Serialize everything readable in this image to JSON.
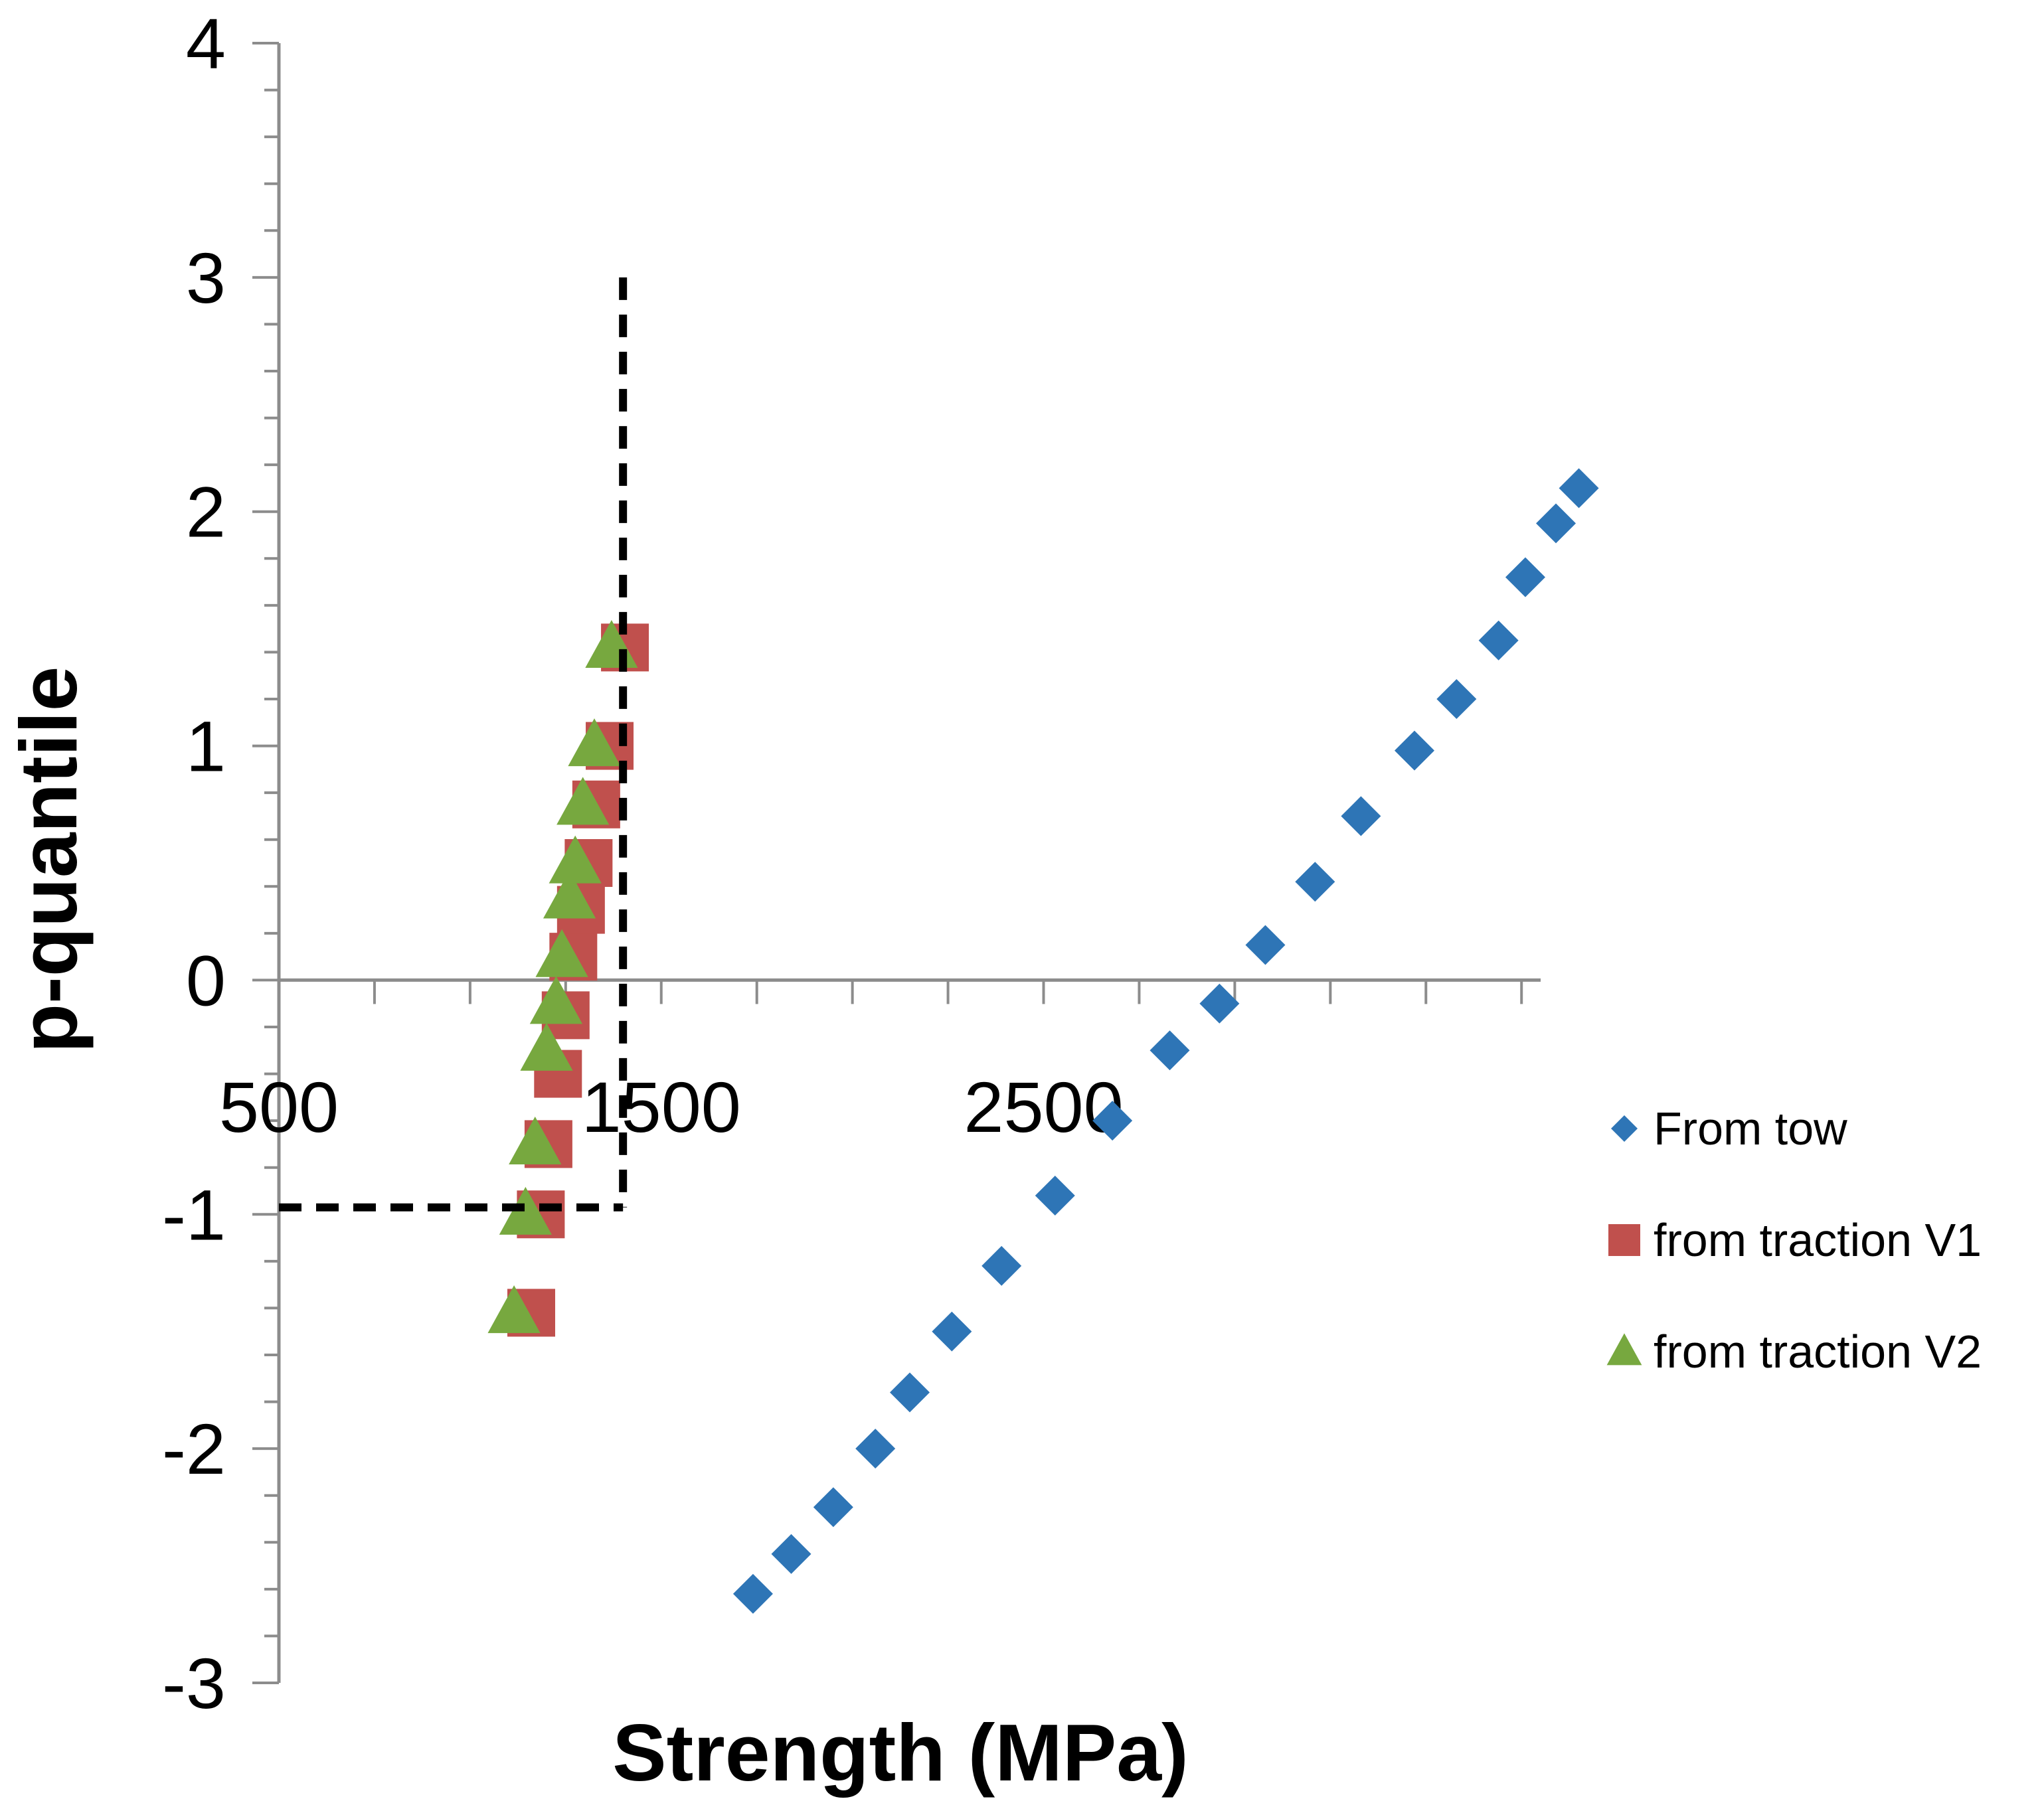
{
  "chart_data": {
    "type": "scatter",
    "xlabel": "Strength (MPa)",
    "ylabel": "p-quantile",
    "xlim": [
      500,
      3800
    ],
    "ylim": [
      -3,
      4
    ],
    "x_ticks": [
      500,
      1500,
      2500
    ],
    "y_ticks": [
      4,
      3,
      2,
      1,
      0,
      -1,
      -2,
      -3
    ],
    "grid": false,
    "legend_position": "right",
    "series": [
      {
        "name": "From tow",
        "marker": "diamond",
        "color": "#2e75b6",
        "points": [
          [
            1740,
            -2.62
          ],
          [
            1840,
            -2.45
          ],
          [
            1950,
            -2.25
          ],
          [
            2060,
            -2.0
          ],
          [
            2150,
            -1.76
          ],
          [
            2260,
            -1.5
          ],
          [
            2390,
            -1.22
          ],
          [
            2530,
            -0.92
          ],
          [
            2680,
            -0.6
          ],
          [
            2830,
            -0.3
          ],
          [
            2960,
            -0.1
          ],
          [
            3080,
            0.15
          ],
          [
            3210,
            0.42
          ],
          [
            3330,
            0.7
          ],
          [
            3470,
            0.98
          ],
          [
            3580,
            1.2
          ],
          [
            3690,
            1.45
          ],
          [
            3760,
            1.72
          ],
          [
            3840,
            1.95
          ],
          [
            3900,
            2.1
          ]
        ]
      },
      {
        "name": "from traction V1",
        "marker": "square",
        "color": "#c0504d",
        "points": [
          [
            1160,
            -1.42
          ],
          [
            1185,
            -1.0
          ],
          [
            1205,
            -0.7
          ],
          [
            1230,
            -0.4
          ],
          [
            1250,
            -0.15
          ],
          [
            1270,
            0.1
          ],
          [
            1290,
            0.3
          ],
          [
            1310,
            0.5
          ],
          [
            1330,
            0.75
          ],
          [
            1365,
            1.0
          ],
          [
            1405,
            1.42
          ]
        ]
      },
      {
        "name": "from traction V2",
        "marker": "triangle",
        "color": "#77a83f",
        "points": [
          [
            1115,
            -1.42
          ],
          [
            1145,
            -1.0
          ],
          [
            1170,
            -0.7
          ],
          [
            1200,
            -0.3
          ],
          [
            1225,
            -0.1
          ],
          [
            1240,
            0.1
          ],
          [
            1260,
            0.35
          ],
          [
            1275,
            0.5
          ],
          [
            1295,
            0.75
          ],
          [
            1325,
            1.0
          ],
          [
            1370,
            1.42
          ]
        ]
      }
    ],
    "annotations": [
      {
        "type": "dashed-vertical",
        "x": 1400,
        "y_from": -0.97,
        "y_to": 3.0
      },
      {
        "type": "dashed-horizontal",
        "y": -0.97,
        "x_from": 500,
        "x_to": 1400
      }
    ]
  }
}
